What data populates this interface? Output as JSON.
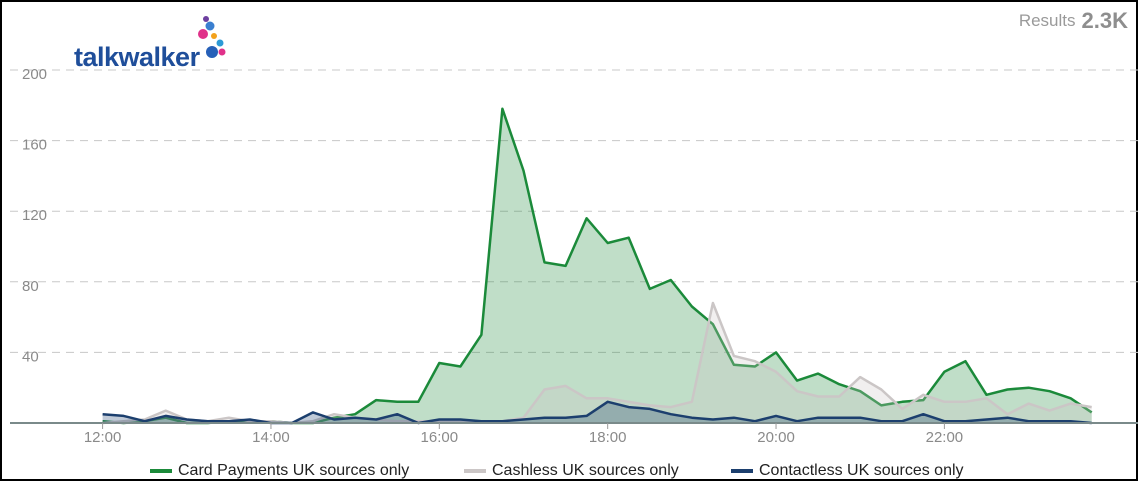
{
  "brand": "talkwalker",
  "results_label": "Results",
  "results_value": "2.3K",
  "chart_data": {
    "type": "area",
    "x": [
      12,
      12.25,
      12.5,
      12.75,
      13,
      13.25,
      13.5,
      13.75,
      14,
      14.25,
      14.5,
      14.75,
      15,
      15.25,
      15.5,
      15.75,
      16,
      16.25,
      16.5,
      16.75,
      17,
      17.25,
      17.5,
      17.75,
      18,
      18.25,
      18.5,
      18.75,
      19,
      19.25,
      19.5,
      19.75,
      20,
      20.25,
      20.5,
      20.75,
      21,
      21.25,
      21.5,
      21.75,
      22,
      22.25,
      22.5,
      22.75,
      23,
      23.25,
      23.5,
      23.75
    ],
    "series": [
      {
        "name": "Card Payments UK sources only",
        "color": "#1b8a3a",
        "values": [
          1,
          0,
          1,
          3,
          0,
          0,
          1,
          1,
          1,
          0,
          0,
          3,
          5,
          13,
          12,
          12,
          34,
          32,
          50,
          178,
          143,
          91,
          89,
          116,
          102,
          105,
          76,
          81,
          66,
          56,
          33,
          32,
          40,
          24,
          28,
          22,
          18,
          10,
          12,
          13,
          29,
          35,
          16,
          19,
          20,
          18,
          14,
          6
        ]
      },
      {
        "name": "Cashless UK sources only",
        "color": "#cbc6c6",
        "values": [
          0,
          1,
          2,
          7,
          2,
          1,
          3,
          1,
          1,
          0,
          1,
          5,
          3,
          2,
          1,
          1,
          1,
          1,
          1,
          1,
          3,
          19,
          21,
          14,
          14,
          12,
          10,
          9,
          12,
          68,
          38,
          35,
          29,
          18,
          15,
          15,
          26,
          19,
          8,
          16,
          12,
          12,
          14,
          5,
          11,
          7,
          11,
          9
        ]
      },
      {
        "name": "Contactless UK sources only",
        "color": "#1c3f6e",
        "values": [
          5,
          4,
          1,
          4,
          2,
          1,
          1,
          2,
          0,
          0,
          6,
          2,
          3,
          2,
          5,
          0,
          2,
          2,
          1,
          1,
          2,
          3,
          3,
          4,
          12,
          9,
          8,
          5,
          3,
          2,
          3,
          1,
          4,
          1,
          3,
          3,
          3,
          1,
          1,
          5,
          1,
          1,
          2,
          3,
          1,
          1,
          1,
          0
        ]
      }
    ],
    "xlim": [
      10.9,
      24.3
    ],
    "xticks": [
      {
        "value": 12,
        "label": "12:00"
      },
      {
        "value": 14,
        "label": "14:00"
      },
      {
        "value": 16,
        "label": "16:00"
      },
      {
        "value": 18,
        "label": "18:00"
      },
      {
        "value": 20,
        "label": "20:00"
      },
      {
        "value": 22,
        "label": "22:00"
      }
    ],
    "ylim": [
      0,
      200
    ],
    "yticks": [
      40,
      80,
      120,
      160,
      200
    ],
    "grid": true,
    "legend": "bottom"
  }
}
